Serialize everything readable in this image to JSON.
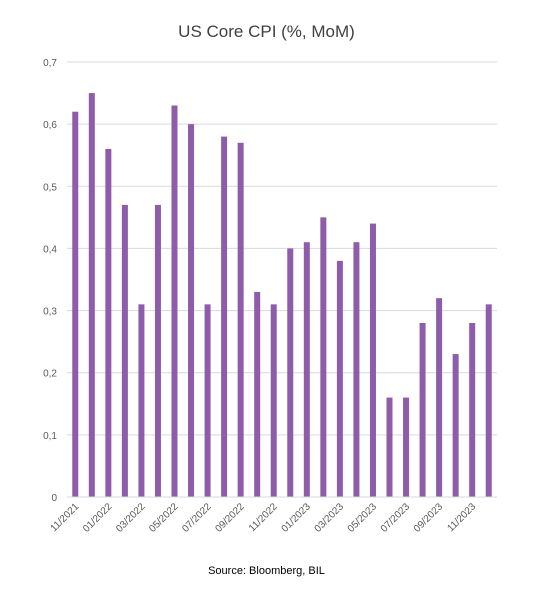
{
  "chart_data": {
    "type": "bar",
    "title": "US Core CPI (%, MoM)",
    "xlabel": "",
    "ylabel": "",
    "ylim": [
      0,
      0.7
    ],
    "y_ticks": [
      "0",
      "0,1",
      "0,2",
      "0,3",
      "0,4",
      "0,5",
      "0,6",
      "0,7"
    ],
    "grid": true,
    "legend": "none",
    "bar_color": "#8e5ca8",
    "categories": [
      "11/2021",
      "12/2021",
      "01/2022",
      "02/2022",
      "03/2022",
      "04/2022",
      "05/2022",
      "06/2022",
      "07/2022",
      "08/2022",
      "09/2022",
      "10/2022",
      "11/2022",
      "12/2022",
      "01/2023",
      "02/2023",
      "03/2023",
      "04/2023",
      "05/2023",
      "06/2023",
      "07/2023",
      "08/2023",
      "09/2023",
      "10/2023",
      "11/2023",
      "12/2023"
    ],
    "x_tick_labels": [
      "11/2021",
      "01/2022",
      "03/2022",
      "05/2022",
      "07/2022",
      "09/2022",
      "11/2022",
      "01/2023",
      "03/2023",
      "05/2023",
      "07/2023",
      "09/2023",
      "11/2023"
    ],
    "values": [
      0.62,
      0.65,
      0.56,
      0.47,
      0.31,
      0.47,
      0.63,
      0.6,
      0.31,
      0.58,
      0.57,
      0.33,
      0.31,
      0.4,
      0.41,
      0.45,
      0.38,
      0.41,
      0.44,
      0.16,
      0.16,
      0.28,
      0.32,
      0.23,
      0.28,
      0.31
    ]
  },
  "footer": {
    "source": "Source: Bloomberg, BIL"
  }
}
